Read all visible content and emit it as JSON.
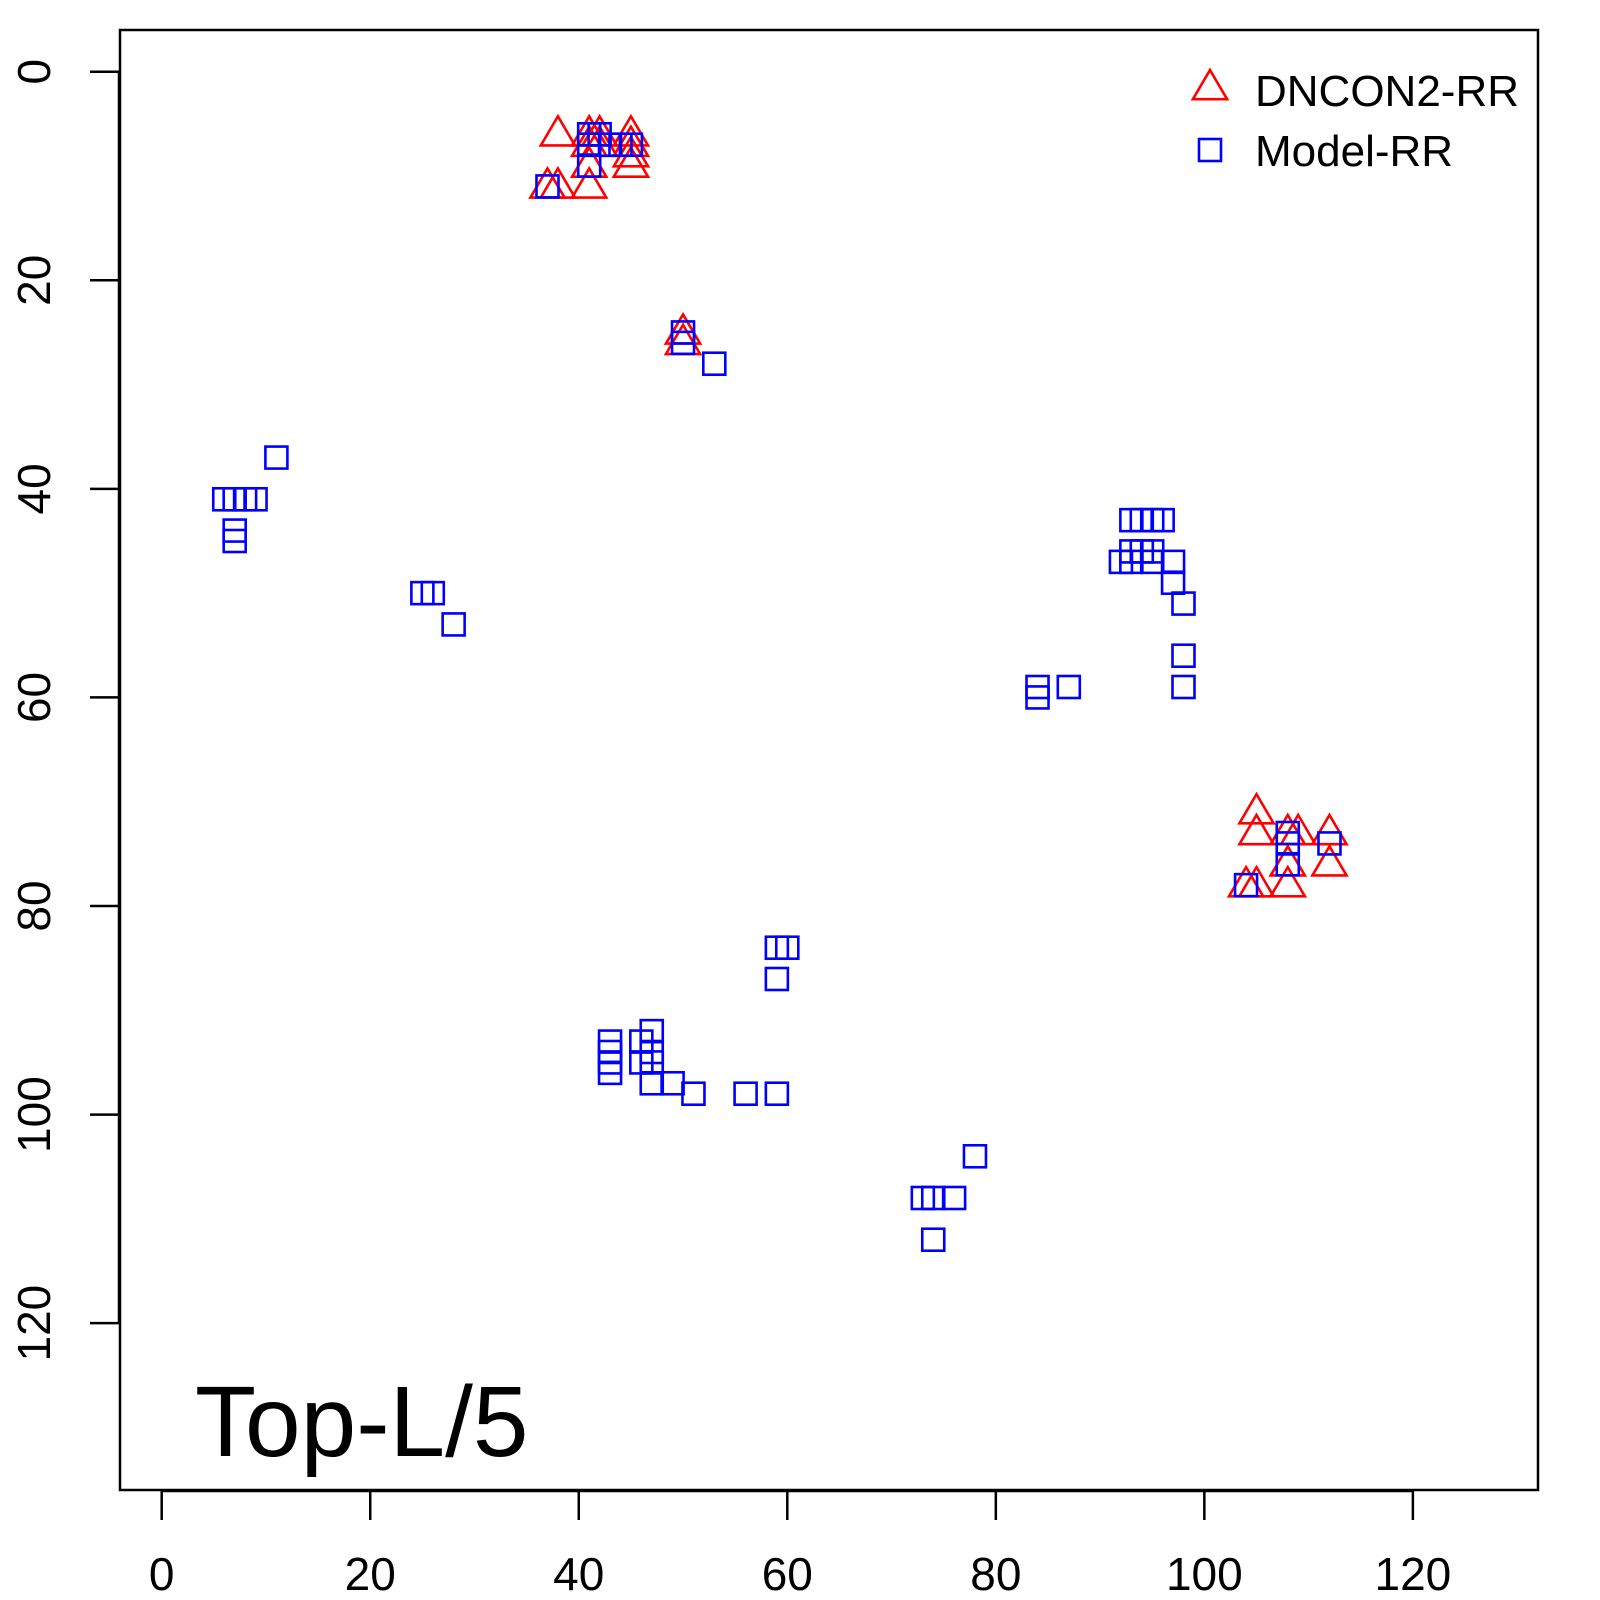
{
  "chart_data": {
    "type": "scatter",
    "annotation": "Top-L/5",
    "xlim": [
      -4,
      132
    ],
    "ylim": [
      136,
      -4
    ],
    "x_ticks": [
      0,
      20,
      40,
      60,
      80,
      100,
      120
    ],
    "y_ticks": [
      0,
      20,
      40,
      60,
      80,
      100,
      120
    ],
    "x_tick_labels": [
      "0",
      "20",
      "40",
      "60",
      "80",
      "100",
      "120"
    ],
    "y_tick_labels": [
      "0",
      "20",
      "40",
      "60",
      "80",
      "100",
      "120"
    ],
    "legend_position": "top-right",
    "series": [
      {
        "name": "DNCON2-RR",
        "marker": "triangle",
        "color": "#ff0000",
        "points": [
          [
            38,
            6
          ],
          [
            41,
            6
          ],
          [
            42,
            6
          ],
          [
            45,
            6
          ],
          [
            41,
            7
          ],
          [
            45,
            7
          ],
          [
            42,
            7
          ],
          [
            45,
            8
          ],
          [
            41,
            9
          ],
          [
            45,
            9
          ],
          [
            37,
            11
          ],
          [
            38,
            11
          ],
          [
            41,
            11
          ],
          [
            50,
            25
          ],
          [
            50,
            26
          ],
          [
            105,
            71
          ],
          [
            105,
            73
          ],
          [
            108,
            73
          ],
          [
            109,
            73
          ],
          [
            112,
            73
          ],
          [
            108,
            76
          ],
          [
            112,
            76
          ],
          [
            104,
            78
          ],
          [
            105,
            78
          ],
          [
            108,
            78
          ]
        ]
      },
      {
        "name": "Model-RR",
        "marker": "square",
        "color": "#0000ff",
        "points": [
          [
            41,
            6
          ],
          [
            42,
            6
          ],
          [
            41,
            7
          ],
          [
            43,
            7
          ],
          [
            44,
            7
          ],
          [
            45,
            7
          ],
          [
            41,
            9
          ],
          [
            37,
            11
          ],
          [
            50,
            25
          ],
          [
            50,
            26
          ],
          [
            53,
            28
          ],
          [
            11,
            37
          ],
          [
            6,
            41
          ],
          [
            7,
            41
          ],
          [
            8,
            41
          ],
          [
            9,
            41
          ],
          [
            7,
            44
          ],
          [
            7,
            45
          ],
          [
            25,
            50
          ],
          [
            26,
            50
          ],
          [
            28,
            53
          ],
          [
            93,
            43
          ],
          [
            94,
            43
          ],
          [
            95,
            43
          ],
          [
            96,
            43
          ],
          [
            93,
            46
          ],
          [
            94,
            46
          ],
          [
            95,
            46
          ],
          [
            92,
            47
          ],
          [
            93,
            47
          ],
          [
            95,
            47
          ],
          [
            97,
            47
          ],
          [
            97,
            49
          ],
          [
            98,
            51
          ],
          [
            98,
            56
          ],
          [
            98,
            59
          ],
          [
            84,
            59
          ],
          [
            84,
            60
          ],
          [
            87,
            59
          ],
          [
            108,
            73
          ],
          [
            108,
            74
          ],
          [
            112,
            74
          ],
          [
            108,
            76
          ],
          [
            104,
            78
          ],
          [
            59,
            84
          ],
          [
            60,
            84
          ],
          [
            59,
            87
          ],
          [
            43,
            93
          ],
          [
            46,
            93
          ],
          [
            47,
            92
          ],
          [
            43,
            94
          ],
          [
            47,
            94
          ],
          [
            43,
            95
          ],
          [
            46,
            95
          ],
          [
            47,
            95
          ],
          [
            43,
            96
          ],
          [
            47,
            97
          ],
          [
            49,
            97
          ],
          [
            51,
            98
          ],
          [
            56,
            98
          ],
          [
            59,
            98
          ],
          [
            78,
            104
          ],
          [
            73,
            108
          ],
          [
            74,
            108
          ],
          [
            76,
            108
          ],
          [
            74,
            112
          ]
        ]
      }
    ]
  }
}
